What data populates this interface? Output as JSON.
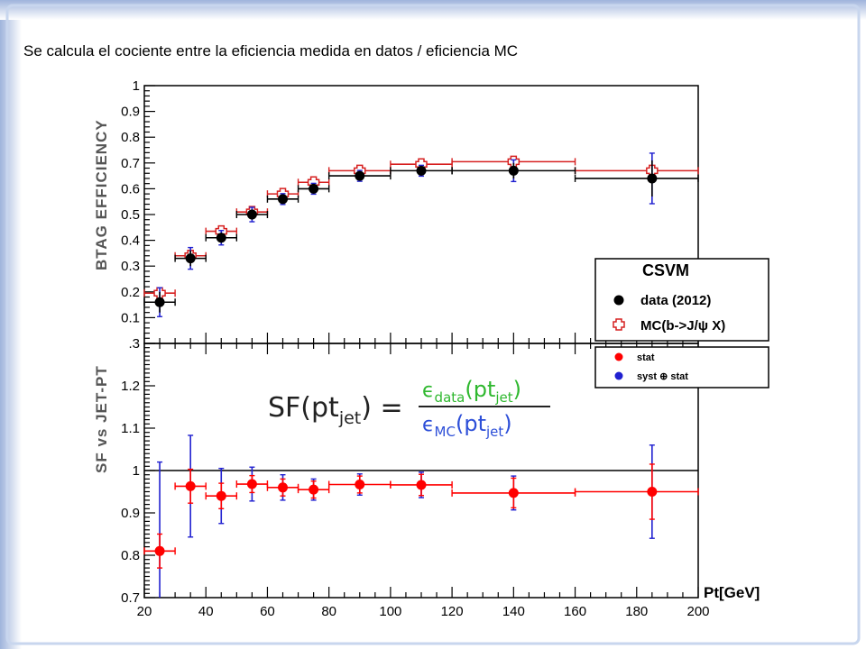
{
  "slide": {
    "text": "Se calcula el cociente entre la eficiencia medida en datos  / eficiencia MC"
  },
  "formula": {
    "lhs": "SF(pt",
    "lhs_sub": "jet",
    "lhs_close": ") =",
    "num": "ϵ",
    "num_sub": "data",
    "num_arg": "(pt",
    "num_arg_sub": "jet",
    "num_close": ")",
    "den": "ϵ",
    "den_sub": "MC",
    "den_arg": "(pt",
    "den_arg_sub": "jet",
    "den_close": ")"
  },
  "colors": {
    "data": "#000000",
    "mc": "#d62020",
    "sf": "#ff0000",
    "syst": "#2020d0",
    "formula_num": "#2fb82f",
    "formula_den": "#2d4fd8",
    "frame_border": "#b9c9e6"
  },
  "chart_data": [
    {
      "type": "scatter",
      "panel": "top",
      "ylabel": "BTAG EFFICIENCY",
      "ylim": [
        0.0,
        1.0
      ],
      "yticks": [
        "0.1",
        "0.2",
        "0.3",
        "0.4",
        "0.5",
        "0.6",
        "0.7",
        "0.8",
        "0.9",
        "1"
      ],
      "xlim": [
        20,
        200
      ],
      "grid": false,
      "legend": {
        "placement": "right",
        "title": "CSVM",
        "entries": [
          {
            "marker": "black-circle",
            "label": "data (2012)"
          },
          {
            "marker": "red-open-cross",
            "label": "MC(b->J/ψ X)"
          }
        ]
      },
      "series": [
        {
          "name": "data (2012)",
          "x": [
            25,
            35,
            45,
            55,
            65,
            75,
            90,
            110,
            140,
            185
          ],
          "x_low": [
            20,
            30,
            40,
            50,
            60,
            70,
            80,
            100,
            120,
            160
          ],
          "x_high": [
            30,
            40,
            50,
            60,
            70,
            80,
            100,
            120,
            160,
            200
          ],
          "y": [
            0.16,
            0.33,
            0.41,
            0.5,
            0.56,
            0.6,
            0.65,
            0.67,
            0.67,
            0.64
          ],
          "y_err": [
            0.04,
            0.03,
            0.02,
            0.02,
            0.015,
            0.015,
            0.015,
            0.015,
            0.03,
            0.07
          ]
        },
        {
          "name": "MC(b->J/ψ X)",
          "x": [
            25,
            35,
            45,
            55,
            65,
            75,
            90,
            110,
            140,
            185
          ],
          "x_low": [
            20,
            30,
            40,
            50,
            60,
            70,
            80,
            100,
            120,
            160
          ],
          "x_high": [
            30,
            40,
            50,
            60,
            70,
            80,
            100,
            120,
            160,
            200
          ],
          "y": [
            0.195,
            0.34,
            0.435,
            0.51,
            0.58,
            0.625,
            0.67,
            0.695,
            0.705,
            0.67
          ],
          "y_err": [
            0.01,
            0.01,
            0.01,
            0.01,
            0.01,
            0.01,
            0.01,
            0.01,
            0.01,
            0.01
          ]
        }
      ]
    },
    {
      "type": "scatter",
      "panel": "bottom",
      "ylabel": "SF vs JET-PT",
      "xlabel": "Pt[GeV]",
      "xlim": [
        20,
        200
      ],
      "ylim": [
        0.7,
        1.3
      ],
      "xticks": [
        "20",
        "40",
        "60",
        "80",
        "100",
        "120",
        "140",
        "160",
        "180",
        "200"
      ],
      "yticks": [
        "0.7",
        "0.8",
        "0.9",
        "1",
        "1.1",
        "1.2"
      ],
      "reference_line": 1.0,
      "grid": false,
      "legend": {
        "placement": "top-right",
        "entries": [
          {
            "marker": "red-dot",
            "label": "stat"
          },
          {
            "marker": "blue-dot",
            "label": "syst ⊕ stat"
          }
        ]
      },
      "series": [
        {
          "name": "stat",
          "x": [
            25,
            35,
            45,
            55,
            65,
            75,
            90,
            110,
            140,
            185
          ],
          "x_low": [
            20,
            30,
            40,
            50,
            60,
            70,
            80,
            100,
            120,
            160
          ],
          "x_high": [
            30,
            40,
            50,
            60,
            70,
            80,
            100,
            120,
            160,
            200
          ],
          "y": [
            0.81,
            0.963,
            0.94,
            0.968,
            0.96,
            0.955,
            0.967,
            0.966,
            0.947,
            0.95
          ],
          "y_err": [
            0.04,
            0.04,
            0.03,
            0.02,
            0.02,
            0.02,
            0.02,
            0.025,
            0.035,
            0.065
          ],
          "syst_err": [
            0.21,
            0.12,
            0.065,
            0.04,
            0.03,
            0.025,
            0.025,
            0.03,
            0.04,
            0.11
          ]
        }
      ]
    }
  ]
}
